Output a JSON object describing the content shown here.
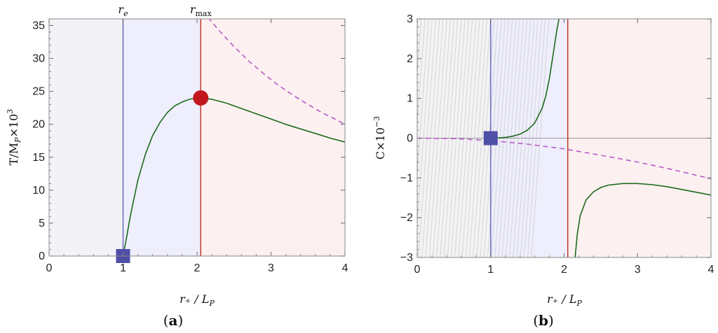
{
  "chart_data": [
    {
      "type": "line",
      "panel_label_open": "(",
      "panel_label_letter": "a",
      "panel_label_close": ")",
      "xlabel": "r₊ / L",
      "xlabel_sub": "P",
      "ylabel": "T/M",
      "ylabel_sub": "P",
      "ylabel_tail": "×10",
      "ylabel_sup": "3",
      "xlim": [
        0,
        4
      ],
      "ylim": [
        0,
        36
      ],
      "xticks": [
        "0",
        "1",
        "2",
        "3",
        "4"
      ],
      "yticks": [
        "0",
        "5",
        "10",
        "15",
        "20",
        "25",
        "30",
        "35"
      ],
      "vlines": [
        {
          "x": 1.0,
          "label": "r",
          "label_sub": "e",
          "color": "#6b6bc0"
        },
        {
          "x": 2.05,
          "label": "r",
          "label_sub": "max",
          "color": "#c0392b"
        }
      ],
      "regions": [
        {
          "from": 0,
          "to": 1.0,
          "color": "#f3f3f7"
        },
        {
          "from": 1.0,
          "to": 2.05,
          "color": "#eeeefc"
        },
        {
          "from": 2.05,
          "to": 4,
          "color": "#fdf0f0"
        }
      ],
      "series": [
        {
          "style": "solid",
          "color": "#1e6b1e",
          "x": [
            1.0,
            1.05,
            1.1,
            1.2,
            1.3,
            1.4,
            1.5,
            1.6,
            1.7,
            1.8,
            1.9,
            2.0,
            2.05,
            2.2,
            2.4,
            2.6,
            2.8,
            3.0,
            3.2,
            3.4,
            3.6,
            3.8,
            4.0
          ],
          "y": [
            0.0,
            3.0,
            6.2,
            11.5,
            15.4,
            18.3,
            20.3,
            21.8,
            22.8,
            23.4,
            23.8,
            24.0,
            24.0,
            23.8,
            23.2,
            22.4,
            21.6,
            20.8,
            20.0,
            19.3,
            18.6,
            17.9,
            17.3
          ]
        },
        {
          "style": "dashed",
          "color": "#b65cc8",
          "x": [
            2.15,
            2.3,
            2.5,
            2.7,
            2.9,
            3.1,
            3.3,
            3.5,
            3.7,
            3.9,
            4.0
          ],
          "y": [
            36.2,
            34.2,
            31.8,
            29.6,
            27.7,
            25.9,
            24.4,
            23.0,
            21.7,
            20.6,
            20.0
          ]
        }
      ],
      "markers": [
        {
          "shape": "square",
          "x": 1.0,
          "y": 0,
          "color": "#4f4fa8"
        },
        {
          "shape": "circle",
          "x": 2.05,
          "y": 24.0,
          "color": "#c0161e"
        }
      ]
    },
    {
      "type": "line",
      "panel_label_open": "(",
      "panel_label_letter": "b",
      "panel_label_close": ")",
      "xlabel": "r₊ / L",
      "xlabel_sub": "P",
      "ylabel": "C×10",
      "ylabel_sup": "−3",
      "xlim": [
        0,
        4
      ],
      "ylim": [
        -3,
        3
      ],
      "xticks": [
        "0",
        "1",
        "2",
        "3",
        "4"
      ],
      "yticks": [
        "−3",
        "−2",
        "−1",
        "0",
        "1",
        "2",
        "3"
      ],
      "ytick_values": [
        -3,
        -2,
        -1,
        0,
        1,
        2,
        3
      ],
      "hline": 0,
      "hatch": {
        "from": 0,
        "to": 1.0
      },
      "vlines": [
        {
          "x": 1.0,
          "color": "#6b6bc0"
        },
        {
          "x": 2.05,
          "color": "#c0392b"
        }
      ],
      "regions": [
        {
          "from": 0,
          "to": 1.0,
          "color": "#f3f3f3"
        },
        {
          "from": 1.0,
          "to": 2.05,
          "color": "#eeeefc"
        },
        {
          "from": 2.05,
          "to": 4,
          "color": "#fdf0f0"
        }
      ],
      "series": [
        {
          "style": "solid",
          "color": "#1e6b1e",
          "x": [
            1.0,
            1.1,
            1.2,
            1.3,
            1.4,
            1.5,
            1.6,
            1.7,
            1.75,
            1.8,
            1.85,
            1.9,
            1.93
          ],
          "y": [
            0.0,
            0.005,
            0.02,
            0.05,
            0.1,
            0.2,
            0.38,
            0.75,
            1.05,
            1.5,
            2.1,
            2.7,
            3.0
          ]
        },
        {
          "style": "solid",
          "color": "#1e6b1e",
          "x": [
            2.15,
            2.18,
            2.22,
            2.3,
            2.4,
            2.5,
            2.6,
            2.8,
            3.0,
            3.2,
            3.4,
            3.6,
            3.8,
            4.0
          ],
          "y": [
            -3.0,
            -2.4,
            -1.95,
            -1.55,
            -1.35,
            -1.24,
            -1.18,
            -1.14,
            -1.14,
            -1.17,
            -1.22,
            -1.29,
            -1.36,
            -1.43
          ]
        },
        {
          "style": "dashed",
          "color": "#b65cc8",
          "x": [
            0.0,
            0.5,
            1.0,
            1.5,
            2.0,
            2.5,
            3.0,
            3.5,
            4.0
          ],
          "y": [
            0.0,
            -0.01,
            -0.06,
            -0.15,
            -0.27,
            -0.43,
            -0.6,
            -0.8,
            -1.02
          ]
        }
      ],
      "markers": [
        {
          "shape": "square",
          "x": 1.0,
          "y": 0,
          "color": "#4f4fa8"
        }
      ]
    }
  ]
}
